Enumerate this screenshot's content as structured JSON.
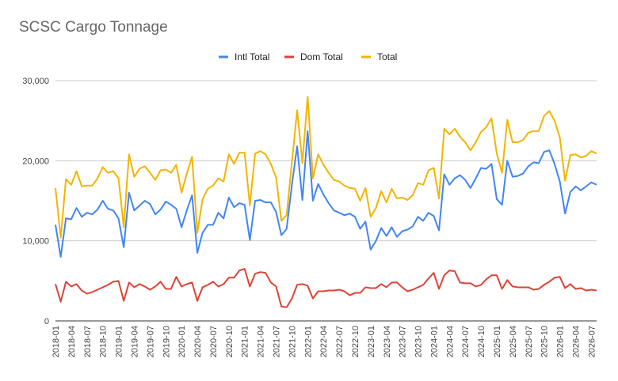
{
  "chart_data": {
    "type": "line",
    "title": "SCSC Cargo Tonnage",
    "xlabel": "",
    "ylabel": "",
    "ylim": [
      0,
      30000
    ],
    "yticks": [
      "0",
      "10,000",
      "20,000",
      "30,000"
    ],
    "ytick_values": [
      0,
      10000,
      20000,
      30000
    ],
    "grid": true,
    "legend_position": "top",
    "start_month": "2018-01",
    "x_labels": [
      "2018-01",
      "2018-04",
      "2018-07",
      "2018-10",
      "2019-01",
      "2019-04",
      "2019-07",
      "2019-10",
      "2020-01",
      "2020-04",
      "2020-07",
      "2020-10",
      "2021-01",
      "2021-04",
      "2021-07",
      "2021-10",
      "2022-01",
      "2022-04",
      "2022-07",
      "2022-10",
      "2023-01",
      "2023-04",
      "2023-07",
      "2023-10",
      "2024-01",
      "2024-04",
      "2024-07",
      "2024-10",
      "2025-01",
      "2025-04",
      "2025-07",
      "2025-10",
      "2026-01",
      "2026-04",
      "2026-07"
    ],
    "series": [
      {
        "name": "Intl Total",
        "color": "#4285f4",
        "values": [
          12000,
          8000,
          12800,
          12700,
          14100,
          13000,
          13500,
          13300,
          13900,
          15000,
          14000,
          13800,
          12800,
          9200,
          16000,
          13800,
          14400,
          15000,
          14600,
          13300,
          13900,
          14900,
          14500,
          14000,
          11700,
          13800,
          15700,
          8500,
          11000,
          12000,
          12000,
          13500,
          12800,
          15400,
          14200,
          14700,
          14500,
          10100,
          15000,
          15100,
          14800,
          14800,
          13600,
          10700,
          11500,
          17000,
          21800,
          15100,
          23700,
          15000,
          17100,
          15800,
          14700,
          13800,
          13500,
          13200,
          13400,
          13000,
          11500,
          12400,
          8900,
          10000,
          11600,
          10600,
          11700,
          10500,
          11200,
          11400,
          11800,
          13000,
          12500,
          13500,
          13100,
          11300,
          18300,
          17000,
          17800,
          18200,
          17600,
          16600,
          17800,
          19100,
          19000,
          19600,
          15200,
          14500,
          20000,
          18000,
          18100,
          18400,
          19300,
          19800,
          19700,
          21100,
          21300,
          19600,
          17400,
          13400,
          16100,
          16800,
          16300,
          16800,
          17300,
          17000
        ]
      },
      {
        "name": "Dom Total",
        "color": "#db4437",
        "values": [
          4600,
          2400,
          4900,
          4300,
          4600,
          3800,
          3400,
          3600,
          3900,
          4200,
          4500,
          4900,
          5000,
          2500,
          4800,
          4200,
          4600,
          4300,
          3900,
          4300,
          4900,
          4000,
          4000,
          5500,
          4300,
          4600,
          4800,
          2500,
          4200,
          4500,
          4900,
          4300,
          4600,
          5400,
          5400,
          6300,
          6500,
          4300,
          5900,
          6100,
          6000,
          4800,
          4300,
          1800,
          1700,
          2800,
          4500,
          4600,
          4400,
          2800,
          3700,
          3700,
          3800,
          3800,
          3900,
          3700,
          3200,
          3500,
          3500,
          4200,
          4100,
          4100,
          4600,
          4200,
          4800,
          4800,
          4200,
          3700,
          3900,
          4200,
          4500,
          5300,
          6000,
          4000,
          5700,
          6300,
          6200,
          4800,
          4700,
          4700,
          4300,
          4500,
          5200,
          5700,
          5700,
          4000,
          5100,
          4300,
          4200,
          4200,
          4200,
          3900,
          4000,
          4500,
          4900,
          5400,
          5500,
          4100,
          4600,
          4000,
          4100,
          3800,
          3900,
          3800
        ]
      },
      {
        "name": "Total",
        "color": "#f4b400",
        "values": [
          16600,
          10400,
          17700,
          17000,
          18700,
          16800,
          16900,
          16900,
          17800,
          19200,
          18500,
          18700,
          17800,
          11700,
          20800,
          18000,
          19000,
          19300,
          18500,
          17600,
          18800,
          18900,
          18500,
          19500,
          16000,
          18400,
          20500,
          11000,
          15200,
          16500,
          16900,
          17800,
          17400,
          20800,
          19600,
          21000,
          21000,
          14400,
          20900,
          21200,
          20800,
          19600,
          17900,
          12500,
          13200,
          19800,
          26300,
          19700,
          28000,
          17800,
          20800,
          19500,
          18500,
          17600,
          17400,
          16900,
          16600,
          16500,
          15000,
          16600,
          13000,
          14100,
          16200,
          14800,
          16500,
          15300,
          15400,
          15100,
          15700,
          17200,
          17000,
          18800,
          19100,
          15300,
          24000,
          23300,
          24000,
          23000,
          22300,
          21300,
          22300,
          23600,
          24200,
          25300,
          20900,
          18500,
          25100,
          22300,
          22300,
          22600,
          23500,
          23700,
          23700,
          25600,
          26200,
          25000,
          22900,
          17500,
          20700,
          20800,
          20400,
          20600,
          21200,
          20900
        ]
      }
    ]
  }
}
